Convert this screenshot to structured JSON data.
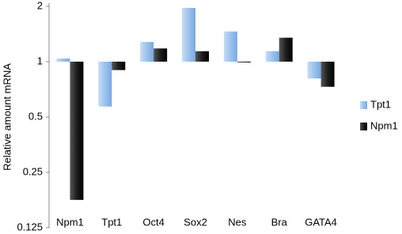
{
  "chart_data": {
    "type": "bar",
    "y_label": "Relative amount mRNA",
    "categories": [
      "Npm1",
      "Tpt1",
      "Oct4",
      "Sox2",
      "Nes",
      "Bra",
      "GATA4"
    ],
    "series": [
      {
        "name": "Tpt1",
        "color": "#9cc2ee",
        "values": [
          1.04,
          0.57,
          1.28,
          1.96,
          1.46,
          1.14,
          0.81
        ]
      },
      {
        "name": "Npm1",
        "color": "#1e1e1e",
        "values": [
          0.177,
          0.9,
          1.18,
          1.14,
          1.0,
          1.35,
          0.73
        ]
      }
    ],
    "yscale": "log",
    "ylim": [
      0.125,
      2
    ],
    "yticks": [
      0.125,
      0.25,
      0.5,
      1,
      2
    ],
    "bar_baseline": 1,
    "grid": false,
    "legend": "right"
  }
}
